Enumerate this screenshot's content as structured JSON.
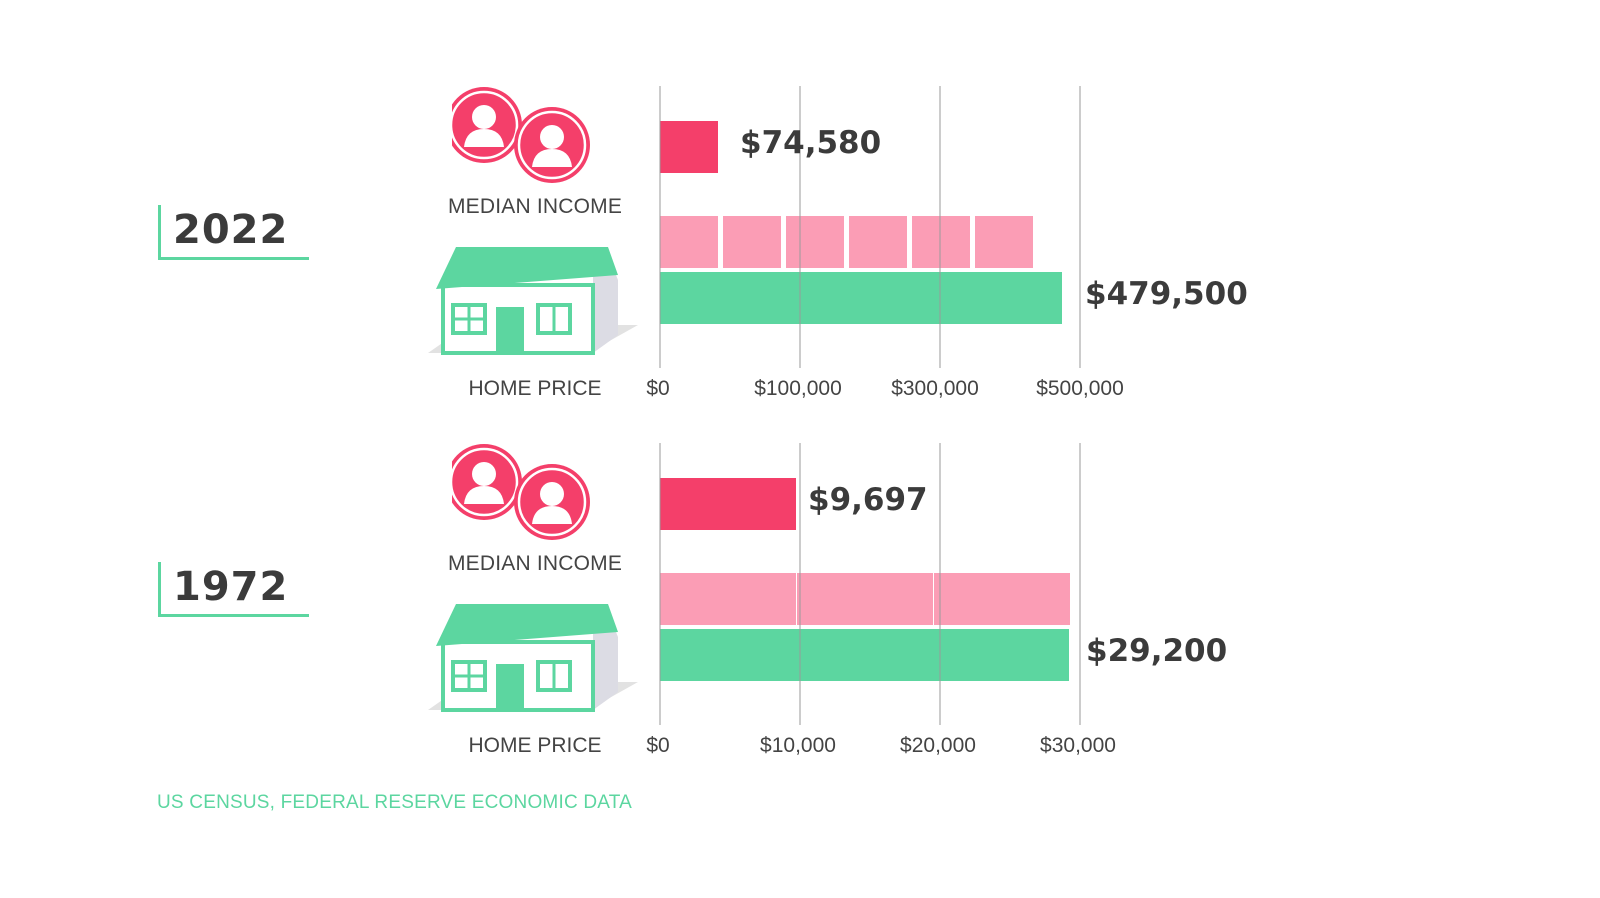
{
  "colors": {
    "income": "#f43f6a",
    "income_segment": "#fb9db5",
    "home": "#5cd6a0",
    "text": "#3b3b3b",
    "grid": "#9a9a9a"
  },
  "chart_data": [
    {
      "type": "bar",
      "year": "2022",
      "categories": [
        "MEDIAN INCOME",
        "HOME PRICE"
      ],
      "series": [
        {
          "values": [
            74580,
            479500
          ]
        }
      ],
      "income_multiples_shown": 6,
      "value_labels": [
        "$74,580",
        "$479,500"
      ],
      "tick_labels": [
        "$0",
        "$100,000",
        "$300,000",
        "$500,000"
      ],
      "grid": true
    },
    {
      "type": "bar",
      "year": "1972",
      "categories": [
        "MEDIAN INCOME",
        "HOME PRICE"
      ],
      "series": [
        {
          "values": [
            9697,
            29200
          ]
        }
      ],
      "income_multiples_shown": 3,
      "value_labels": [
        "$9,697",
        "$29,200"
      ],
      "tick_labels": [
        "$0",
        "$10,000",
        "$20,000",
        "$30,000"
      ],
      "xlim": [
        0,
        30000
      ],
      "grid": true
    }
  ],
  "labels": {
    "income": "MEDIAN INCOME",
    "home": "HOME PRICE"
  },
  "icons": {
    "income": "two-person-coins-icon",
    "home": "house-icon"
  },
  "source": "US CENSUS, FEDERAL RESERVE ECONOMIC DATA"
}
